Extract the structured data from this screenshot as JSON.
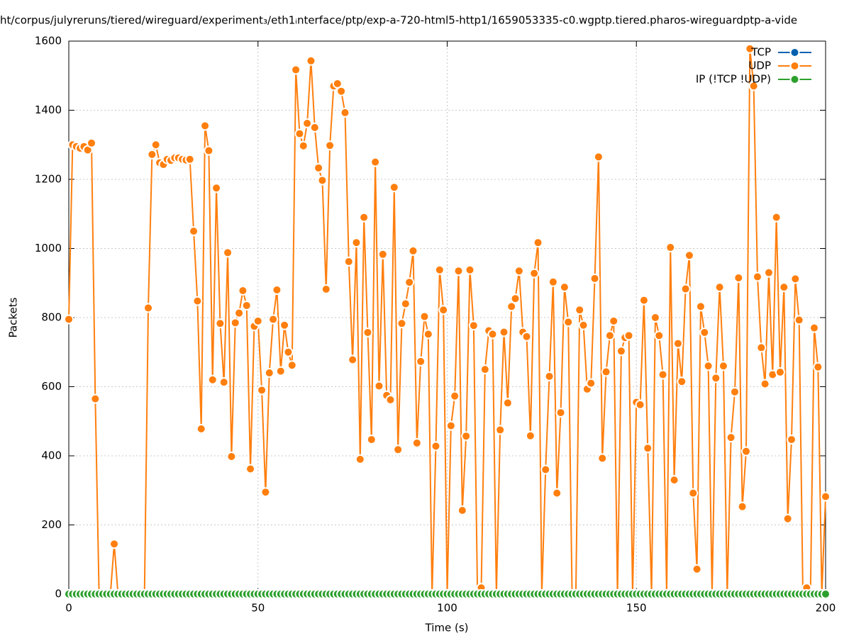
{
  "chart_data": {
    "type": "line",
    "title": "ht/corpus/julyreruns/tiered/wireguard/experiment₃/eth1ᵢnterface/ptp/exp-a-720-html5-http1/1659053335-c0.wgptp.tiered.pharos-wireguardptp-a-vide",
    "x_label": "Time (s)",
    "y_label": "Packets",
    "xlim": [
      0,
      200
    ],
    "xticks": [
      0,
      50,
      100,
      150,
      200
    ],
    "ylim": [
      0,
      1600
    ],
    "yticks": [
      0,
      200,
      400,
      600,
      800,
      1000,
      1200,
      1400,
      1600
    ],
    "grid": true,
    "legend": "top-right",
    "x": [
      0,
      1,
      2,
      3,
      4,
      5,
      6,
      7,
      8,
      9,
      10,
      11,
      12,
      13,
      14,
      15,
      16,
      17,
      18,
      19,
      20,
      21,
      22,
      23,
      24,
      25,
      26,
      27,
      28,
      29,
      30,
      31,
      32,
      33,
      34,
      35,
      36,
      37,
      38,
      39,
      40,
      41,
      42,
      43,
      44,
      45,
      46,
      47,
      48,
      49,
      50,
      51,
      52,
      53,
      54,
      55,
      56,
      57,
      58,
      59,
      60,
      61,
      62,
      63,
      64,
      65,
      66,
      67,
      68,
      69,
      70,
      71,
      72,
      73,
      74,
      75,
      76,
      77,
      78,
      79,
      80,
      81,
      82,
      83,
      84,
      85,
      86,
      87,
      88,
      89,
      90,
      91,
      92,
      93,
      94,
      95,
      96,
      97,
      98,
      99,
      100,
      101,
      102,
      103,
      104,
      105,
      106,
      107,
      108,
      109,
      110,
      111,
      112,
      113,
      114,
      115,
      116,
      117,
      118,
      119,
      120,
      121,
      122,
      123,
      124,
      125,
      126,
      127,
      128,
      129,
      130,
      131,
      132,
      133,
      134,
      135,
      136,
      137,
      138,
      139,
      140,
      141,
      142,
      143,
      144,
      145,
      146,
      147,
      148,
      149,
      150,
      151,
      152,
      153,
      154,
      155,
      156,
      157,
      158,
      159,
      160,
      161,
      162,
      163,
      164,
      165,
      166,
      167,
      168,
      169,
      170,
      171,
      172,
      173,
      174,
      175,
      176,
      177,
      178,
      179,
      180,
      181,
      182,
      183,
      184,
      185,
      186,
      187,
      188,
      189,
      190,
      191,
      192,
      193,
      194,
      195,
      196,
      197,
      198,
      199,
      200
    ],
    "series": [
      {
        "name": "TCP",
        "color": "#0060ad",
        "values": [
          0,
          0,
          0,
          0,
          0,
          0,
          0,
          0,
          0,
          0,
          0,
          0,
          0,
          0,
          0,
          0,
          0,
          0,
          0,
          0,
          0,
          0,
          0,
          0,
          0,
          0,
          0,
          0,
          0,
          0,
          0,
          0,
          0,
          0,
          0,
          0,
          0,
          0,
          0,
          0,
          0,
          0,
          0,
          0,
          0,
          0,
          0,
          0,
          0,
          0,
          0,
          0,
          0,
          0,
          0,
          0,
          0,
          0,
          0,
          0,
          0,
          0,
          0,
          0,
          0,
          0,
          0,
          0,
          0,
          0,
          0,
          0,
          0,
          0,
          0,
          0,
          0,
          0,
          0,
          0,
          0,
          0,
          0,
          0,
          0,
          0,
          0,
          0,
          0,
          0,
          0,
          0,
          0,
          0,
          0,
          0,
          0,
          0,
          0,
          0,
          0,
          0,
          0,
          0,
          0,
          0,
          0,
          0,
          0,
          0,
          0,
          0,
          0,
          0,
          0,
          0,
          0,
          0,
          0,
          0,
          0,
          0,
          0,
          0,
          0,
          0,
          0,
          0,
          0,
          0,
          0,
          0,
          0,
          0,
          0,
          0,
          0,
          0,
          0,
          0,
          0,
          0,
          0,
          0,
          0,
          0,
          0,
          0,
          0,
          0,
          0,
          0,
          0,
          0,
          0,
          0,
          0,
          0,
          0,
          0,
          0,
          0,
          0,
          0,
          0,
          0,
          0,
          0,
          0,
          0,
          0,
          0,
          0,
          0,
          0,
          0,
          0,
          0,
          0,
          0,
          0,
          0,
          0,
          0,
          0,
          0,
          0,
          0,
          0,
          0,
          0,
          0,
          0,
          0,
          0,
          0,
          0,
          0,
          0,
          0,
          0
        ]
      },
      {
        "name": "UDP",
        "color": "#ff7f0e",
        "values": [
          795,
          1300,
          1295,
          1290,
          1295,
          1285,
          1305,
          565,
          0,
          0,
          0,
          0,
          145,
          0,
          0,
          0,
          0,
          0,
          0,
          0,
          0,
          828,
          1272,
          1300,
          1248,
          1243,
          1258,
          1255,
          1262,
          1262,
          1258,
          1256,
          1258,
          1050,
          848,
          478,
          1355,
          1283,
          620,
          1175,
          783,
          613,
          988,
          398,
          785,
          813,
          878,
          835,
          362,
          775,
          790,
          590,
          295,
          640,
          795,
          880,
          645,
          778,
          700,
          662,
          1517,
          1332,
          1297,
          1362,
          1543,
          1350,
          1233,
          1197,
          882,
          1298,
          1470,
          1477,
          1455,
          1393,
          962,
          678,
          1017,
          390,
          1090,
          757,
          447,
          1250,
          602,
          983,
          575,
          562,
          1177,
          418,
          783,
          840,
          902,
          993,
          437,
          673,
          803,
          752,
          0,
          428,
          938,
          822,
          0,
          487,
          573,
          935,
          242,
          457,
          938,
          777,
          0,
          18,
          650,
          762,
          752,
          0,
          475,
          758,
          553,
          832,
          855,
          935,
          758,
          745,
          458,
          928,
          1017,
          0,
          360,
          630,
          903,
          292,
          525,
          888,
          787,
          0,
          0,
          822,
          778,
          593,
          610,
          913,
          1265,
          393,
          643,
          748,
          790,
          0,
          703,
          742,
          748,
          0,
          555,
          548,
          850,
          422,
          0,
          800,
          748,
          635,
          0,
          1003,
          330,
          725,
          615,
          883,
          980,
          292,
          72,
          832,
          757,
          660,
          0,
          625,
          888,
          660,
          0,
          453,
          585,
          915,
          253,
          413,
          1578,
          1470,
          918,
          713,
          608,
          930,
          635,
          1090,
          642,
          888,
          218,
          447,
          912,
          793,
          0,
          18,
          0,
          770,
          657,
          0,
          282
        ]
      },
      {
        "name": "IP (!TCP  !UDP)",
        "color": "#2ca02c",
        "values": [
          0,
          0,
          0,
          0,
          0,
          0,
          0,
          0,
          0,
          0,
          0,
          0,
          0,
          0,
          0,
          0,
          0,
          0,
          0,
          0,
          0,
          0,
          0,
          0,
          0,
          0,
          0,
          0,
          0,
          0,
          0,
          0,
          0,
          0,
          0,
          0,
          0,
          0,
          0,
          0,
          0,
          0,
          0,
          0,
          0,
          0,
          0,
          0,
          0,
          0,
          0,
          0,
          0,
          0,
          0,
          0,
          0,
          0,
          0,
          0,
          0,
          0,
          0,
          0,
          0,
          0,
          0,
          0,
          0,
          0,
          0,
          0,
          0,
          0,
          0,
          0,
          0,
          0,
          0,
          0,
          0,
          0,
          0,
          0,
          0,
          0,
          0,
          0,
          0,
          0,
          0,
          0,
          0,
          0,
          0,
          0,
          0,
          0,
          0,
          0,
          0,
          0,
          0,
          0,
          0,
          0,
          0,
          0,
          0,
          0,
          0,
          0,
          0,
          0,
          0,
          0,
          0,
          0,
          0,
          0,
          0,
          0,
          0,
          0,
          0,
          0,
          0,
          0,
          0,
          0,
          0,
          0,
          0,
          0,
          0,
          0,
          0,
          0,
          0,
          0,
          0,
          0,
          0,
          0,
          0,
          0,
          0,
          0,
          0,
          0,
          0,
          0,
          0,
          0,
          0,
          0,
          0,
          0,
          0,
          0,
          0,
          0,
          0,
          0,
          0,
          0,
          0,
          0,
          0,
          0,
          0,
          0,
          0,
          0,
          0,
          0,
          0,
          0,
          0,
          0,
          0,
          0,
          0,
          0,
          0,
          0,
          0,
          0,
          0,
          0,
          0,
          0,
          0,
          0,
          0,
          0,
          0,
          0,
          0,
          0,
          0
        ]
      }
    ]
  }
}
